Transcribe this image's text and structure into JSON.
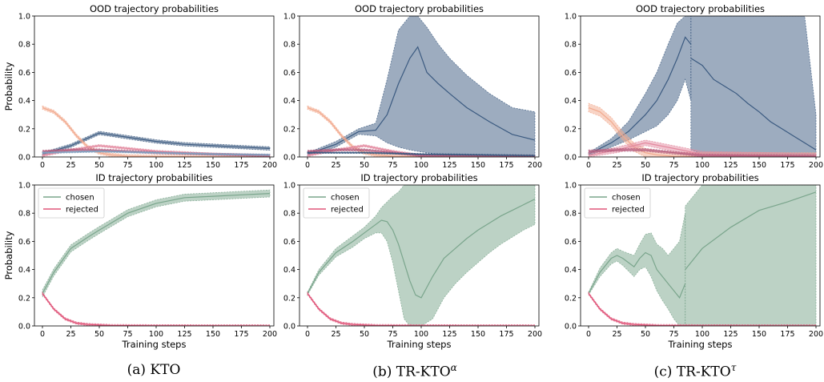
{
  "captions": {
    "a": "(a) KTO",
    "b_main": "(b) TR-KTO",
    "b_sup": "α",
    "c_main": "(c) TR-KTO",
    "c_sup": "τ"
  },
  "chart_data": [
    {
      "type": "line",
      "panel": "a-top",
      "title": "OOD trajectory probabilities",
      "xlabel": "",
      "ylabel": "Probability",
      "xlim": [
        0,
        200
      ],
      "ylim": [
        0,
        1
      ],
      "xticks": [
        0,
        25,
        50,
        75,
        100,
        125,
        150,
        175,
        200
      ],
      "yticks": [
        0.0,
        0.2,
        0.4,
        0.6,
        0.8,
        1.0
      ],
      "series": [
        {
          "color": "#3b5a80",
          "band": 0.012,
          "x": [
            0,
            25,
            50,
            75,
            100,
            125,
            150,
            175,
            200
          ],
          "y": [
            0.02,
            0.08,
            0.17,
            0.14,
            0.11,
            0.09,
            0.08,
            0.07,
            0.06
          ]
        },
        {
          "color": "#f2a98d",
          "band": 0.012,
          "x": [
            0,
            10,
            20,
            30,
            40,
            50,
            60,
            75,
            100,
            200
          ],
          "y": [
            0.35,
            0.32,
            0.25,
            0.15,
            0.07,
            0.03,
            0.015,
            0.005,
            0.002,
            0.0
          ]
        },
        {
          "color": "#e3899f",
          "band": 0.008,
          "x": [
            0,
            25,
            50,
            75,
            100,
            125,
            150,
            200
          ],
          "y": [
            0.01,
            0.05,
            0.08,
            0.06,
            0.04,
            0.03,
            0.02,
            0.01
          ]
        },
        {
          "color": "#b45c7d",
          "band": 0.008,
          "x": [
            0,
            25,
            50,
            75,
            100,
            150,
            200
          ],
          "y": [
            0.04,
            0.05,
            0.05,
            0.04,
            0.03,
            0.02,
            0.01
          ]
        },
        {
          "color": "#7f9fbf",
          "band": 0.006,
          "x": [
            0,
            50,
            100,
            150,
            200
          ],
          "y": [
            0.03,
            0.04,
            0.03,
            0.02,
            0.015
          ]
        }
      ]
    },
    {
      "type": "line",
      "panel": "b-top",
      "title": "OOD trajectory probabilities",
      "xlabel": "",
      "ylabel": "",
      "xlim": [
        0,
        200
      ],
      "ylim": [
        0,
        1
      ],
      "xticks": [
        0,
        25,
        50,
        75,
        100,
        125,
        150,
        175,
        200
      ],
      "yticks": [
        0.0,
        0.2,
        0.4,
        0.6,
        0.8,
        1.0
      ],
      "series": [
        {
          "color": "#3b5a80",
          "x": [
            0,
            25,
            45,
            60,
            70,
            80,
            90,
            97,
            105,
            115,
            125,
            140,
            160,
            180,
            200
          ],
          "y": [
            0.02,
            0.09,
            0.18,
            0.19,
            0.3,
            0.52,
            0.7,
            0.78,
            0.6,
            0.52,
            0.45,
            0.35,
            0.25,
            0.16,
            0.12
          ],
          "lower": [
            0.01,
            0.07,
            0.16,
            0.15,
            0.1,
            0.07,
            0.05,
            0.04,
            0.03,
            0.02,
            0.02,
            0.01,
            0.01,
            0.01,
            0.01
          ],
          "upper": [
            0.03,
            0.11,
            0.2,
            0.24,
            0.55,
            0.9,
            1.0,
            1.0,
            0.92,
            0.8,
            0.7,
            0.58,
            0.45,
            0.35,
            0.32
          ]
        },
        {
          "color": "#f2a98d",
          "band": 0.012,
          "x": [
            0,
            10,
            20,
            30,
            40,
            50,
            60,
            75,
            100,
            200
          ],
          "y": [
            0.35,
            0.32,
            0.25,
            0.15,
            0.07,
            0.03,
            0.015,
            0.005,
            0.002,
            0.0
          ]
        },
        {
          "color": "#e3899f",
          "band": 0.008,
          "x": [
            0,
            25,
            50,
            75,
            100,
            200
          ],
          "y": [
            0.01,
            0.05,
            0.08,
            0.04,
            0.01,
            0.005
          ]
        },
        {
          "color": "#b45c7d",
          "band": 0.008,
          "x": [
            0,
            25,
            50,
            75,
            100,
            200
          ],
          "y": [
            0.04,
            0.05,
            0.05,
            0.03,
            0.01,
            0.005
          ]
        },
        {
          "color": "#3b5a80",
          "band": 0.005,
          "x": [
            0,
            50,
            100,
            150,
            200
          ],
          "y": [
            0.03,
            0.03,
            0.02,
            0.015,
            0.01
          ]
        }
      ]
    },
    {
      "type": "line",
      "panel": "c-top",
      "title": "OOD trajectory probabilities",
      "xlabel": "",
      "ylabel": "",
      "xlim": [
        0,
        200
      ],
      "ylim": [
        0,
        1
      ],
      "xticks": [
        0,
        25,
        50,
        75,
        100,
        125,
        150,
        175,
        200
      ],
      "yticks": [
        0.0,
        0.2,
        0.4,
        0.6,
        0.8,
        1.0
      ],
      "series": [
        {
          "color": "#3b5a80",
          "x": [
            0,
            20,
            35,
            50,
            60,
            70,
            78,
            85,
            90
          ],
          "y": [
            0.02,
            0.1,
            0.18,
            0.3,
            0.4,
            0.55,
            0.7,
            0.85,
            0.8
          ],
          "lower": [
            0.01,
            0.07,
            0.12,
            0.18,
            0.22,
            0.3,
            0.4,
            0.55,
            0.4
          ],
          "upper": [
            0.03,
            0.13,
            0.25,
            0.45,
            0.6,
            0.8,
            0.95,
            1.0,
            1.0
          ]
        },
        {
          "color": "#3b5a80",
          "x": [
            90,
            100,
            110,
            120,
            130,
            140,
            150,
            160,
            170,
            180,
            190,
            200
          ],
          "y": [
            0.7,
            0.65,
            0.55,
            0.5,
            0.45,
            0.38,
            0.32,
            0.25,
            0.2,
            0.15,
            0.1,
            0.05
          ],
          "lower": [
            0.05,
            0.02,
            0.02,
            0.01,
            0.01,
            0.01,
            0.01,
            0.01,
            0.01,
            0.01,
            0.01,
            0.01
          ],
          "upper": [
            1.0,
            1.0,
            1.0,
            1.0,
            1.0,
            1.0,
            1.0,
            1.0,
            1.0,
            1.0,
            1.0,
            0.3
          ]
        },
        {
          "color": "#f2a98d",
          "band": 0.03,
          "x": [
            0,
            10,
            20,
            30,
            40,
            50,
            60,
            75,
            100,
            200
          ],
          "y": [
            0.35,
            0.32,
            0.25,
            0.15,
            0.07,
            0.03,
            0.015,
            0.005,
            0.002,
            0.0
          ]
        },
        {
          "color": "#e3899f",
          "band": 0.02,
          "x": [
            0,
            25,
            50,
            75,
            100,
            200
          ],
          "y": [
            0.01,
            0.05,
            0.1,
            0.06,
            0.02,
            0.005
          ]
        },
        {
          "color": "#b45c7d",
          "band": 0.01,
          "x": [
            0,
            25,
            50,
            75,
            100,
            200
          ],
          "y": [
            0.04,
            0.05,
            0.05,
            0.03,
            0.01,
            0.005
          ]
        }
      ]
    },
    {
      "type": "line",
      "panel": "a-bottom",
      "title": "ID trajectory probabilities",
      "xlabel": "Training steps",
      "ylabel": "Probability",
      "xlim": [
        0,
        200
      ],
      "ylim": [
        0,
        1
      ],
      "xticks": [
        0,
        25,
        50,
        75,
        100,
        125,
        150,
        175,
        200
      ],
      "yticks": [
        0.0,
        0.2,
        0.4,
        0.6,
        0.8,
        1.0
      ],
      "legend": {
        "position": "upper-left",
        "entries": [
          "chosen",
          "rejected"
        ]
      },
      "series": [
        {
          "name": "chosen",
          "color": "#7aa58c",
          "band": 0.025,
          "x": [
            0,
            10,
            25,
            40,
            50,
            75,
            100,
            125,
            150,
            175,
            200
          ],
          "y": [
            0.23,
            0.38,
            0.55,
            0.63,
            0.68,
            0.8,
            0.87,
            0.91,
            0.92,
            0.93,
            0.94
          ]
        },
        {
          "name": "rejected",
          "color": "#e0567a",
          "band": 0.008,
          "x": [
            0,
            10,
            20,
            30,
            40,
            60,
            100,
            200
          ],
          "y": [
            0.23,
            0.12,
            0.05,
            0.02,
            0.01,
            0.003,
            0.001,
            0.0
          ]
        }
      ]
    },
    {
      "type": "line",
      "panel": "b-bottom",
      "title": "ID trajectory probabilities",
      "xlabel": "Training steps",
      "ylabel": "",
      "xlim": [
        0,
        200
      ],
      "ylim": [
        0,
        1
      ],
      "xticks": [
        0,
        25,
        50,
        75,
        100,
        125,
        150,
        175,
        200
      ],
      "yticks": [
        0.0,
        0.2,
        0.4,
        0.6,
        0.8,
        1.0
      ],
      "legend": {
        "position": "upper-left",
        "entries": [
          "chosen",
          "rejected"
        ]
      },
      "series": [
        {
          "name": "chosen",
          "color": "#7aa58c",
          "x": [
            0,
            10,
            25,
            40,
            50,
            60,
            65,
            70,
            75,
            80,
            85,
            90,
            95,
            100,
            110,
            120,
            130,
            140,
            150,
            160,
            170,
            180,
            190,
            200
          ],
          "y": [
            0.23,
            0.38,
            0.52,
            0.6,
            0.66,
            0.72,
            0.75,
            0.74,
            0.68,
            0.58,
            0.45,
            0.32,
            0.22,
            0.2,
            0.35,
            0.48,
            0.55,
            0.62,
            0.68,
            0.73,
            0.78,
            0.82,
            0.86,
            0.9
          ],
          "lower": [
            0.22,
            0.36,
            0.49,
            0.56,
            0.62,
            0.66,
            0.66,
            0.6,
            0.45,
            0.25,
            0.05,
            0.0,
            0.0,
            0.0,
            0.05,
            0.2,
            0.3,
            0.38,
            0.45,
            0.52,
            0.58,
            0.63,
            0.68,
            0.72
          ],
          "upper": [
            0.24,
            0.4,
            0.55,
            0.64,
            0.7,
            0.78,
            0.84,
            0.88,
            0.92,
            0.95,
            1.0,
            1.0,
            1.0,
            1.0,
            1.0,
            1.0,
            1.0,
            1.0,
            1.0,
            1.0,
            1.0,
            1.0,
            1.0,
            1.0
          ]
        },
        {
          "name": "rejected",
          "color": "#e0567a",
          "band": 0.008,
          "x": [
            0,
            10,
            20,
            30,
            40,
            60,
            100,
            200
          ],
          "y": [
            0.23,
            0.12,
            0.05,
            0.02,
            0.01,
            0.003,
            0.001,
            0.0
          ]
        }
      ]
    },
    {
      "type": "line",
      "panel": "c-bottom",
      "title": "ID trajectory probabilities",
      "xlabel": "Training steps",
      "ylabel": "",
      "xlim": [
        0,
        200
      ],
      "ylim": [
        0,
        1
      ],
      "xticks": [
        0,
        25,
        50,
        75,
        100,
        125,
        150,
        175,
        200
      ],
      "yticks": [
        0.0,
        0.2,
        0.4,
        0.6,
        0.8,
        1.0
      ],
      "legend": {
        "position": "upper-left",
        "entries": [
          "chosen",
          "rejected"
        ]
      },
      "series": [
        {
          "name": "chosen",
          "color": "#7aa58c",
          "x": [
            0,
            10,
            20,
            25,
            30,
            40,
            45,
            50,
            55,
            60,
            65,
            70,
            75,
            80,
            85
          ],
          "y": [
            0.23,
            0.38,
            0.48,
            0.5,
            0.48,
            0.42,
            0.48,
            0.52,
            0.5,
            0.4,
            0.35,
            0.3,
            0.25,
            0.2,
            0.3
          ],
          "lower": [
            0.22,
            0.35,
            0.44,
            0.46,
            0.43,
            0.35,
            0.4,
            0.42,
            0.35,
            0.25,
            0.18,
            0.12,
            0.05,
            0.0,
            0.0
          ],
          "upper": [
            0.24,
            0.41,
            0.52,
            0.55,
            0.53,
            0.5,
            0.58,
            0.65,
            0.66,
            0.58,
            0.55,
            0.5,
            0.55,
            0.6,
            0.8
          ]
        },
        {
          "name": "chosen",
          "color": "#7aa58c",
          "x": [
            85,
            100,
            125,
            150,
            175,
            200
          ],
          "y": [
            0.4,
            0.55,
            0.7,
            0.82,
            0.88,
            0.95
          ],
          "lower": [
            0.0,
            0.0,
            0.0,
            0.0,
            0.0,
            0.0
          ],
          "upper": [
            0.85,
            1.0,
            1.0,
            1.0,
            1.0,
            1.0
          ]
        },
        {
          "name": "rejected",
          "color": "#e0567a",
          "band": 0.008,
          "x": [
            0,
            10,
            20,
            30,
            40,
            60,
            100,
            200
          ],
          "y": [
            0.23,
            0.12,
            0.05,
            0.02,
            0.01,
            0.003,
            0.001,
            0.0
          ]
        }
      ]
    }
  ]
}
